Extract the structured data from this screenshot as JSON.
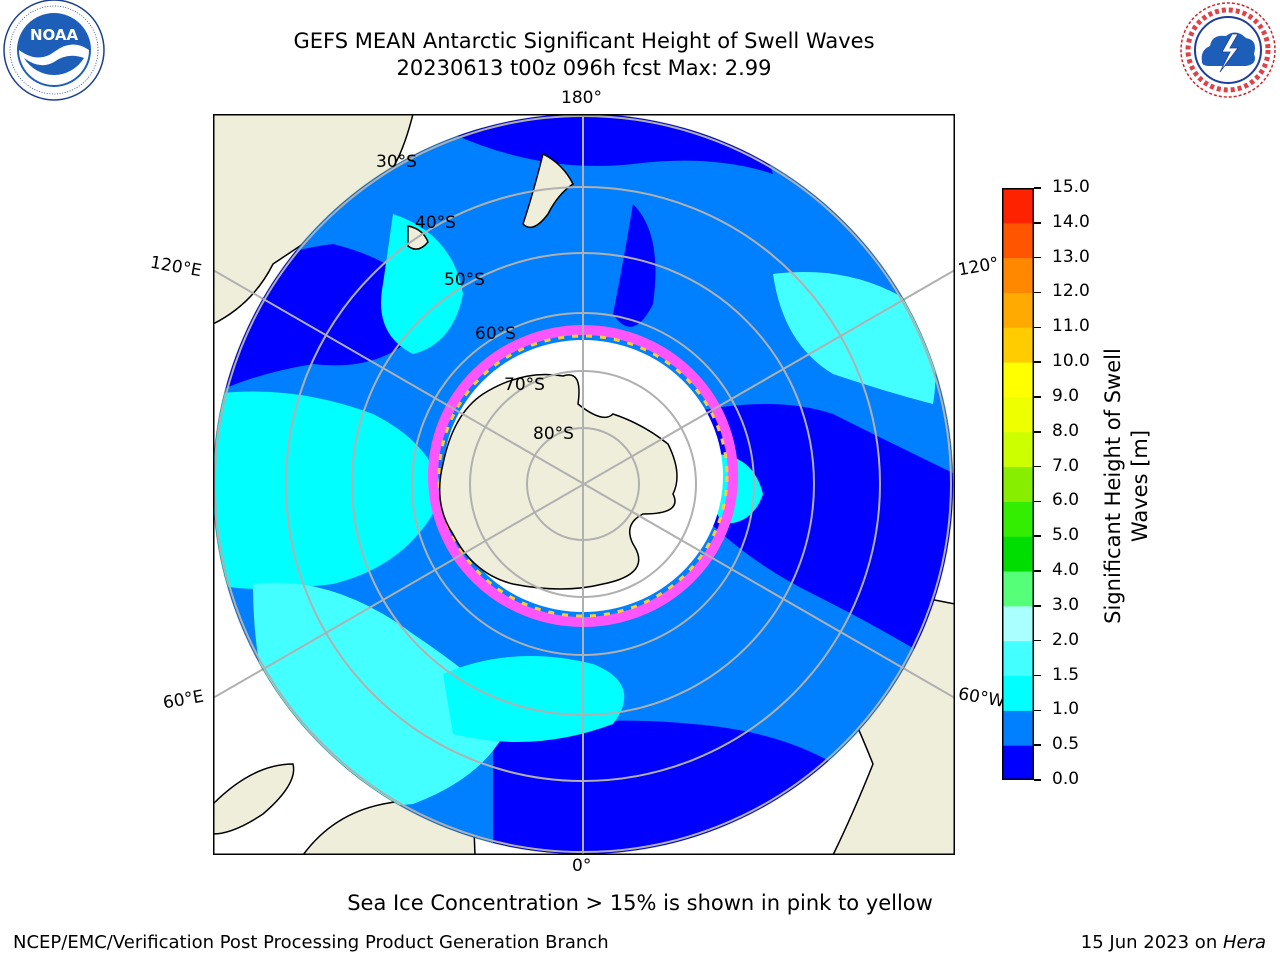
{
  "header": {
    "title_line1": "GEFS MEAN Antarctic Significant Height of Swell Waves",
    "title_line2": "20230613 t00z 096h fcst   Max: 2.99"
  },
  "logos": {
    "noaa": {
      "text": "NOAA",
      "ring_text": "NATIONAL OCEANIC AND ATMOSPHERIC ADMINISTRATION · U.S. DEPARTMENT OF COMMERCE"
    },
    "nws": {
      "ring_text": "NATIONAL WEATHER SERVICE"
    }
  },
  "map": {
    "projection": "south-polar-stereographic",
    "longitude_labels": {
      "top": "180°",
      "bottom": "0°",
      "left_upper": "120°E",
      "left_lower": "60°E",
      "right_upper": "120°",
      "right_lower": "60°W"
    },
    "latitude_labels": [
      "30°S",
      "40°S",
      "50°S",
      "60°S",
      "70°S",
      "80°S"
    ],
    "colors": {
      "land": "#efeedb",
      "ocean_deep_blue": "#0000ff",
      "ocean_mid_blue": "#0080ff",
      "ocean_cyan": "#00ffff",
      "ocean_light_cyan": "#44ffff",
      "sea_ice_pink": "#ff55ff",
      "sea_ice_yellow": "#ffcc33",
      "gridline": "#b0b0b0"
    }
  },
  "colorbar": {
    "label": "Significant Height of Swell Waves [m]",
    "label_line1": "Significant Height of Swell",
    "label_line2": "Waves [m]",
    "ticks": [
      "0.0",
      "0.5",
      "1.0",
      "1.5",
      "2.0",
      "3.0",
      "4.0",
      "5.0",
      "6.0",
      "7.0",
      "8.0",
      "9.0",
      "10.0",
      "11.0",
      "12.0",
      "13.0",
      "14.0",
      "15.0"
    ],
    "colors": [
      "#0000ff",
      "#0080ff",
      "#00ffff",
      "#44ffff",
      "#aaffff",
      "#55ff77",
      "#00dd00",
      "#33ee00",
      "#88ee00",
      "#ccff00",
      "#eeff00",
      "#ffff00",
      "#ffcc00",
      "#ffaa00",
      "#ff8800",
      "#ff5500",
      "#ff2200"
    ]
  },
  "caption": "Sea Ice Concentration > 15% is shown in pink to yellow",
  "footer": {
    "left": "NCEP/EMC/Verification Post Processing Product Generation Branch",
    "right_prefix": "15 Jun 2023 on ",
    "right_host": "Hera"
  }
}
